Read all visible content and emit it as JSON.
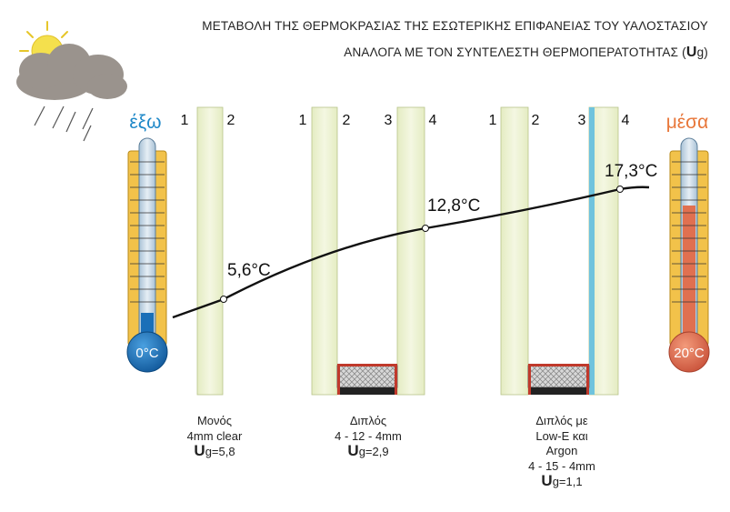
{
  "header": {
    "line1": "ΜΕΤΑΒΟΛΗ ΤΗΣ ΘΕΡΜΟΚΡΑΣΙΑΣ ΤΗΣ ΕΣΩΤΕΡΙΚΗΣ ΕΠΙΦΑΝΕΙΑΣ ΤΟΥ ΥΑΛΟΣΤΑΣΙΟΥ",
    "line2_prefix": "ΑΝΑΛΟΓΑ ΜΕ ΤΟΝ ΣΥΝΤΕΛΕΣΤΗ ΘΕΡΜΟΠΕΡΑΤΟΤΗΤΑΣ (",
    "line2_U": "U",
    "line2_suffix": "g)"
  },
  "sides": {
    "outside_label": "έξω",
    "inside_label": "μέσα",
    "outside_color": "#1e88c8",
    "inside_color": "#e8773a"
  },
  "thermometers": {
    "outside_temp": "0°C",
    "inside_temp": "20°C",
    "outside_fill_color": "#1a6fb8",
    "inside_fill_color": "#e07050"
  },
  "surface_numbers": [
    "1",
    "2",
    "1",
    "2",
    "3",
    "4",
    "1",
    "2",
    "3",
    "4"
  ],
  "temperatures": {
    "single": "5,6°C",
    "double": "12,8°C",
    "lowe": "17,3°C"
  },
  "captions": {
    "single": {
      "lines": [
        "Μονός",
        "4mm clear"
      ],
      "u": "U",
      "ug_value": "g=5,8"
    },
    "double": {
      "lines": [
        "Διπλός",
        "4 - 12 - 4mm"
      ],
      "u": "U",
      "ug_value": "g=2,9"
    },
    "lowe": {
      "lines": [
        "Διπλός με",
        "Low-E και",
        "Argon",
        "4 - 15 - 4mm"
      ],
      "u": "U",
      "ug_value": "g=1,1"
    }
  },
  "icons": {
    "weather": "sun-cloud-rain-icon"
  },
  "colors": {
    "glass": "#eef3d4",
    "glass_edge": "#b8c48a",
    "lowe_coating": "#6fc3dd",
    "spacer": "#777777",
    "seal": "#c0392b",
    "thermo_frame": "#f2c24a"
  }
}
